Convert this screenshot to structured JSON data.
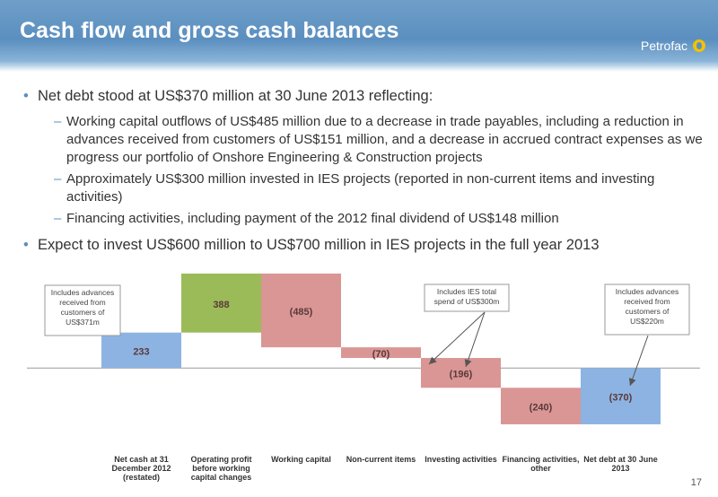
{
  "header": {
    "title": "Cash flow and gross cash balances",
    "logo_text": "Petrofac"
  },
  "bullets": [
    {
      "text": "Net debt stood at US$370 million at 30 June 2013 reflecting:",
      "sub": [
        "Working capital outflows of US$485 million due to a decrease in trade payables, including a reduction in advances received from customers of US$151 million, and a decrease in accrued contract expenses as we progress our portfolio of Onshore Engineering & Construction projects",
        "Approximately US$300 million invested in IES projects (reported in non-current items and investing activities)",
        "Financing activities, including payment of the 2012 final dividend of US$148 million"
      ]
    },
    {
      "text": "Expect to invest US$600 million to US$700 million in IES projects in the full year 2013",
      "sub": []
    }
  ],
  "chart_data": {
    "type": "bar",
    "subtype": "waterfall",
    "categories": [
      "Net cash at 31 December 2012 (restated)",
      "Operating profit before working capital changes",
      "Working capital",
      "Non-current items",
      "Investing activities",
      "Financing activities, other",
      "Net debt at 30 June 2013"
    ],
    "category_lines": [
      [
        "Net cash at 31",
        "December 2012",
        "(restated)"
      ],
      [
        "Operating profit",
        "before working",
        "capital changes"
      ],
      [
        "Working capital"
      ],
      [
        "Non-current items"
      ],
      [
        "Investing activities"
      ],
      [
        "Financing activities,",
        "other"
      ],
      [
        "Net debt at 30 June",
        "2013"
      ]
    ],
    "values": [
      233,
      388,
      -485,
      -70,
      -196,
      -240,
      -370
    ],
    "labels": [
      "233",
      "388",
      "(485)",
      "(70)",
      "(196)",
      "(240)",
      "(370)"
    ],
    "kinds": [
      "total",
      "increase",
      "decrease",
      "decrease",
      "decrease",
      "decrease",
      "total"
    ],
    "ylim": [
      -500,
      650
    ],
    "annotations": [
      {
        "text": "Includes advances received from customers of US$371m",
        "lines": [
          "Includes advances",
          "received from",
          "customers of",
          "US$371m"
        ]
      },
      {
        "text": "Includes IES total spend of US$300m",
        "lines": [
          "Includes IES total",
          "spend of US$300m"
        ]
      },
      {
        "text": "Includes advances received from customers of US$220m",
        "lines": [
          "Includes advances",
          "received from",
          "customers of",
          "US$220m"
        ]
      }
    ],
    "colors": {
      "total": "#8db3e2",
      "increase": "#9bbb59",
      "decrease": "#d99694",
      "label": "#5a3a3a"
    }
  },
  "page_number": "17"
}
